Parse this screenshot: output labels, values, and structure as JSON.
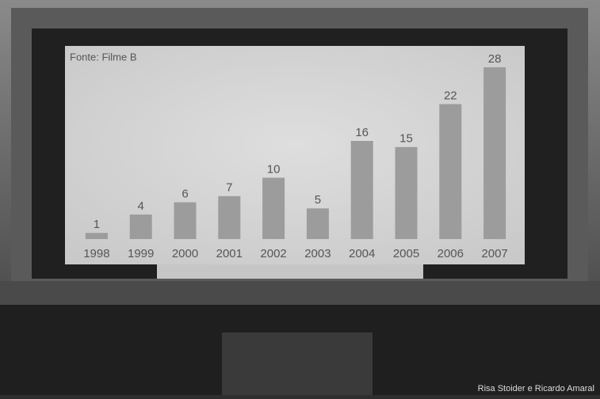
{
  "chart_data": {
    "type": "bar",
    "source": "Fonte: Filme B",
    "categories": [
      "1998",
      "1999",
      "2000",
      "2001",
      "2002",
      "2003",
      "2004",
      "2005",
      "2006",
      "2007"
    ],
    "values": [
      1,
      4,
      6,
      7,
      10,
      5,
      16,
      15,
      22,
      28
    ],
    "color": "#9c9c9c"
  },
  "credit": "Risa Stoider e Ricardo Amaral"
}
